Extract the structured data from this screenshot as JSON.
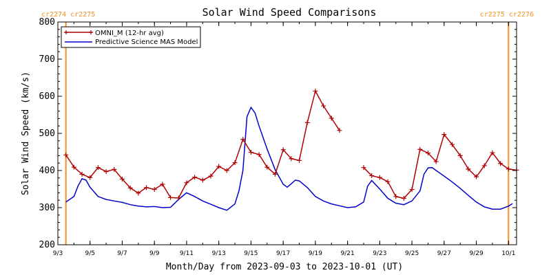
{
  "colors": {
    "omni": "#b00000",
    "model": "#0000cc",
    "cr_line": "#f5921e",
    "axis": "#000000"
  },
  "chart_data": {
    "type": "line",
    "title": "Solar Wind Speed Comparisons",
    "xlabel": "Month/Day from 2023-09-03 to 2023-10-01 (UT)",
    "ylabel": "Solar Wind Speed (km/s)",
    "xlim": [
      "2023-09-03T00:00",
      "2023-10-01T12:00"
    ],
    "ylim": [
      200,
      800
    ],
    "yticks": [
      200,
      300,
      400,
      500,
      600,
      700,
      800
    ],
    "xticks": [
      {
        "label": "9/3",
        "date": "2023-09-03"
      },
      {
        "label": "9/5",
        "date": "2023-09-05"
      },
      {
        "label": "9/7",
        "date": "2023-09-07"
      },
      {
        "label": "9/9",
        "date": "2023-09-09"
      },
      {
        "label": "9/11",
        "date": "2023-09-11"
      },
      {
        "label": "9/13",
        "date": "2023-09-13"
      },
      {
        "label": "9/15",
        "date": "2023-09-15"
      },
      {
        "label": "9/17",
        "date": "2023-09-17"
      },
      {
        "label": "9/19",
        "date": "2023-09-19"
      },
      {
        "label": "9/21",
        "date": "2023-09-21"
      },
      {
        "label": "9/23",
        "date": "2023-09-23"
      },
      {
        "label": "9/25",
        "date": "2023-09-25"
      },
      {
        "label": "9/27",
        "date": "2023-09-27"
      },
      {
        "label": "9/29",
        "date": "2023-09-29"
      },
      {
        "label": "10/1",
        "date": "2023-10-01"
      }
    ],
    "carrington": {
      "left_label": "cr2274 cr2275",
      "right_label": "cr2275 cr2276",
      "lines": [
        "2023-09-03T12:00",
        "2023-10-01T00:00"
      ]
    },
    "legend": {
      "placement": "top-left"
    },
    "series": [
      {
        "name": "OMNI_M (12-hr avg)",
        "color": "#b00000",
        "markers": "plus",
        "segments": [
          [
            [
              "2023-09-03T12:00",
              442
            ],
            [
              "2023-09-04T00:00",
              409
            ],
            [
              "2023-09-04T12:00",
              390
            ],
            [
              "2023-09-05T00:00",
              381
            ],
            [
              "2023-09-05T12:00",
              408
            ],
            [
              "2023-09-06T00:00",
              397
            ],
            [
              "2023-09-06T12:00",
              403
            ],
            [
              "2023-09-07T00:00",
              377
            ],
            [
              "2023-09-07T12:00",
              353
            ],
            [
              "2023-09-08T00:00",
              339
            ],
            [
              "2023-09-08T12:00",
              354
            ],
            [
              "2023-09-09T00:00",
              349
            ],
            [
              "2023-09-09T12:00",
              363
            ],
            [
              "2023-09-10T00:00",
              327
            ],
            [
              "2023-09-10T12:00",
              326
            ],
            [
              "2023-09-11T00:00",
              367
            ],
            [
              "2023-09-11T12:00",
              382
            ],
            [
              "2023-09-12T00:00",
              374
            ],
            [
              "2023-09-12T12:00",
              385
            ],
            [
              "2023-09-13T00:00",
              411
            ],
            [
              "2023-09-13T12:00",
              400
            ],
            [
              "2023-09-14T00:00",
              421
            ],
            [
              "2023-09-14T12:00",
              484
            ],
            [
              "2023-09-15T00:00",
              449
            ],
            [
              "2023-09-15T12:00",
              443
            ],
            [
              "2023-09-16T00:00",
              409
            ],
            [
              "2023-09-16T12:00",
              390
            ],
            [
              "2023-09-17T00:00",
              456
            ],
            [
              "2023-09-17T12:00",
              432
            ],
            [
              "2023-09-18T00:00",
              427
            ],
            [
              "2023-09-18T12:00",
              529
            ],
            [
              "2023-09-19T00:00",
              614
            ],
            [
              "2023-09-19T12:00",
              574
            ],
            [
              "2023-09-20T00:00",
              541
            ],
            [
              "2023-09-20T12:00",
              508
            ]
          ],
          [
            [
              "2023-09-22T00:00",
              408
            ],
            [
              "2023-09-22T12:00",
              386
            ],
            [
              "2023-09-23T00:00",
              381
            ],
            [
              "2023-09-23T12:00",
              370
            ],
            [
              "2023-09-24T00:00",
              330
            ],
            [
              "2023-09-24T12:00",
              325
            ],
            [
              "2023-09-25T00:00",
              349
            ],
            [
              "2023-09-25T12:00",
              457
            ],
            [
              "2023-09-26T00:00",
              447
            ],
            [
              "2023-09-26T12:00",
              424
            ],
            [
              "2023-09-27T00:00",
              497
            ],
            [
              "2023-09-27T12:00",
              470
            ],
            [
              "2023-09-28T00:00",
              440
            ],
            [
              "2023-09-28T12:00",
              404
            ],
            [
              "2023-09-29T00:00",
              383
            ],
            [
              "2023-09-29T12:00",
              413
            ],
            [
              "2023-09-30T00:00",
              448
            ],
            [
              "2023-09-30T12:00",
              419
            ],
            [
              "2023-10-01T00:00",
              404
            ],
            [
              "2023-10-01T12:00",
              401
            ]
          ]
        ]
      },
      {
        "name": "Predictive Science MAS Model",
        "color": "#0000cc",
        "markers": "none",
        "segments": [
          [
            [
              "2023-09-03T12:00",
              315
            ],
            [
              "2023-09-04T00:00",
              330
            ],
            [
              "2023-09-04T06:00",
              358
            ],
            [
              "2023-09-04T12:00",
              378
            ],
            [
              "2023-09-04T18:00",
              374
            ],
            [
              "2023-09-05T00:00",
              355
            ],
            [
              "2023-09-05T12:00",
              330
            ],
            [
              "2023-09-06T00:00",
              322
            ],
            [
              "2023-09-06T12:00",
              318
            ],
            [
              "2023-09-07T00:00",
              314
            ],
            [
              "2023-09-07T12:00",
              308
            ],
            [
              "2023-09-08T00:00",
              304
            ],
            [
              "2023-09-08T12:00",
              302
            ],
            [
              "2023-09-09T00:00",
              303
            ],
            [
              "2023-09-09T12:00",
              300
            ],
            [
              "2023-09-10T00:00",
              301
            ],
            [
              "2023-09-10T12:00",
              322
            ],
            [
              "2023-09-11T00:00",
              340
            ],
            [
              "2023-09-11T12:00",
              330
            ],
            [
              "2023-09-12T00:00",
              318
            ],
            [
              "2023-09-12T12:00",
              309
            ],
            [
              "2023-09-13T00:00",
              300
            ],
            [
              "2023-09-13T12:00",
              293
            ],
            [
              "2023-09-14T00:00",
              310
            ],
            [
              "2023-09-14T06:00",
              345
            ],
            [
              "2023-09-14T12:00",
              400
            ],
            [
              "2023-09-14T18:00",
              545
            ],
            [
              "2023-09-15T00:00",
              570
            ],
            [
              "2023-09-15T06:00",
              555
            ],
            [
              "2023-09-15T12:00",
              520
            ],
            [
              "2023-09-16T00:00",
              458
            ],
            [
              "2023-09-16T12:00",
              402
            ],
            [
              "2023-09-17T00:00",
              363
            ],
            [
              "2023-09-17T06:00",
              355
            ],
            [
              "2023-09-17T12:00",
              364
            ],
            [
              "2023-09-17T18:00",
              374
            ],
            [
              "2023-09-18T00:00",
              372
            ],
            [
              "2023-09-18T12:00",
              354
            ],
            [
              "2023-09-19T00:00",
              330
            ],
            [
              "2023-09-19T12:00",
              318
            ],
            [
              "2023-09-20T00:00",
              310
            ],
            [
              "2023-09-20T12:00",
              305
            ],
            [
              "2023-09-21T00:00",
              300
            ],
            [
              "2023-09-21T12:00",
              302
            ],
            [
              "2023-09-22T00:00",
              315
            ],
            [
              "2023-09-22T06:00",
              358
            ],
            [
              "2023-09-22T12:00",
              373
            ],
            [
              "2023-09-23T00:00",
              350
            ],
            [
              "2023-09-23T12:00",
              325
            ],
            [
              "2023-09-24T00:00",
              312
            ],
            [
              "2023-09-24T12:00",
              308
            ],
            [
              "2023-09-25T00:00",
              318
            ],
            [
              "2023-09-25T12:00",
              345
            ],
            [
              "2023-09-25T18:00",
              390
            ],
            [
              "2023-09-26T00:00",
              407
            ],
            [
              "2023-09-26T06:00",
              408
            ],
            [
              "2023-09-26T12:00",
              400
            ],
            [
              "2023-09-27T00:00",
              385
            ],
            [
              "2023-09-27T12:00",
              369
            ],
            [
              "2023-09-28T00:00",
              352
            ],
            [
              "2023-09-28T12:00",
              333
            ],
            [
              "2023-09-29T00:00",
              315
            ],
            [
              "2023-09-29T12:00",
              302
            ],
            [
              "2023-09-30T00:00",
              296
            ],
            [
              "2023-09-30T12:00",
              296
            ],
            [
              "2023-10-01T00:00",
              304
            ],
            [
              "2023-10-01T06:00",
              311
            ]
          ]
        ]
      }
    ]
  }
}
